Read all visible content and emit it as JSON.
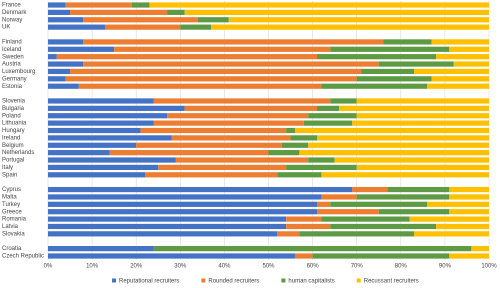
{
  "chart_data": {
    "type": "stacked-bar-horizontal",
    "categories": [
      "France",
      "Denmark",
      "Norway",
      "UK",
      null,
      "Finland",
      "Iceland",
      "Sweden",
      "Austria",
      "Luxembourg",
      "Germany",
      "Estonia",
      null,
      "Slovenia",
      "Bulgaria",
      "Poland",
      "Lithuania",
      "Hungary",
      "Ireland",
      "Belgium",
      "Netherlands",
      "Portugal",
      "Italy",
      "Spain",
      null,
      "Cyprus",
      "Malta",
      "Turkey",
      "Greece",
      "Romania",
      "Latvia",
      "Slovakia",
      null,
      "Croatia",
      "Czech Republic"
    ],
    "series": [
      {
        "name": "Reputational recruiters",
        "color": "#4472c4",
        "values": [
          4,
          5,
          8,
          13,
          null,
          8,
          15,
          2,
          8,
          5,
          4,
          7,
          null,
          24,
          31,
          27,
          24,
          21,
          28,
          20,
          14,
          29,
          25,
          22,
          null,
          69,
          62,
          61,
          61,
          54,
          54,
          52,
          null,
          24,
          56
        ]
      },
      {
        "name": "Rounded recruiters",
        "color": "#ed7d31",
        "values": [
          15,
          22,
          26,
          17,
          null,
          68,
          49,
          59,
          67,
          66,
          66,
          55,
          null,
          40,
          30,
          32,
          34,
          33,
          27,
          33,
          36,
          30,
          29,
          30,
          null,
          8,
          8,
          3,
          14,
          8,
          10,
          5,
          null,
          0,
          4
        ]
      },
      {
        "name": "human capitalists",
        "color": "#5e9a43",
        "values": [
          4,
          4,
          7,
          7,
          null,
          11,
          27,
          27,
          17,
          12,
          17,
          24,
          null,
          6,
          5,
          11,
          11,
          2,
          6,
          6,
          7,
          6,
          16,
          10,
          null,
          14,
          21,
          22,
          16,
          20,
          24,
          26,
          null,
          72,
          31
        ]
      },
      {
        "name": "Recussant recruiters",
        "color": "#ffc000",
        "values": [
          77,
          69,
          59,
          63,
          null,
          13,
          9,
          12,
          8,
          17,
          13,
          14,
          null,
          30,
          34,
          30,
          31,
          44,
          39,
          41,
          43,
          35,
          30,
          38,
          null,
          9,
          9,
          14,
          9,
          18,
          12,
          17,
          null,
          4,
          9
        ]
      }
    ],
    "xlim": [
      0,
      100
    ],
    "xticks": [
      {
        "value": 0,
        "label": "0%"
      },
      {
        "value": 10,
        "label": "10%"
      },
      {
        "value": 20,
        "label": "20%"
      },
      {
        "value": 30,
        "label": "30%"
      },
      {
        "value": 40,
        "label": "40%"
      },
      {
        "value": 50,
        "label": "50%"
      },
      {
        "value": 60,
        "label": "60%"
      },
      {
        "value": 70,
        "label": "70%"
      },
      {
        "value": 80,
        "label": "80%"
      },
      {
        "value": 90,
        "label": "90%"
      },
      {
        "value": 100,
        "label": "100%"
      }
    ],
    "grid": true,
    "legend": "bottom"
  }
}
